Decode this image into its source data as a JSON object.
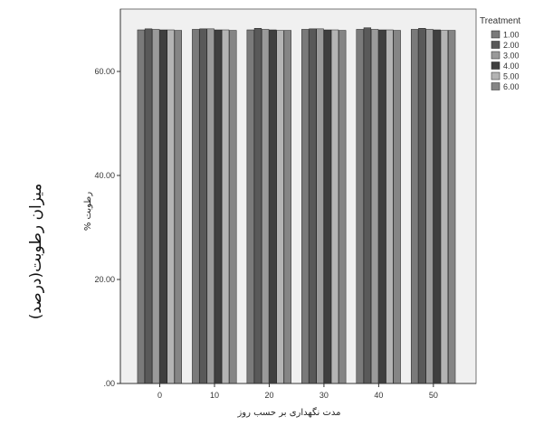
{
  "outer_ylabel": "میزان رطوبت(درصد)",
  "chart_data": {
    "type": "bar",
    "xlabel": "مدت نگهداری بر حسب روز",
    "ylabel": "% رطوبت",
    "categories": [
      "0",
      "10",
      "20",
      "30",
      "40",
      "50"
    ],
    "ylim": [
      0,
      72
    ],
    "y_ticks": [
      ".00",
      "20.00",
      "40.00",
      "60.00"
    ],
    "y_tick_values": [
      0,
      20,
      40,
      60
    ],
    "grid": false,
    "legend": {
      "title": "Treatment",
      "position": "right"
    },
    "series": [
      {
        "name": "1.00",
        "color": "#7a7a7a",
        "values": [
          68.0,
          68.1,
          68.0,
          68.1,
          68.1,
          68.1
        ]
      },
      {
        "name": "2.00",
        "color": "#595959",
        "values": [
          68.2,
          68.2,
          68.3,
          68.2,
          68.4,
          68.3
        ]
      },
      {
        "name": "3.00",
        "color": "#9a9a9a",
        "values": [
          68.1,
          68.2,
          68.1,
          68.2,
          68.1,
          68.1
        ]
      },
      {
        "name": "4.00",
        "color": "#3f3f3f",
        "values": [
          68.0,
          68.0,
          68.0,
          68.0,
          68.0,
          68.0
        ]
      },
      {
        "name": "5.00",
        "color": "#b4b4b4",
        "values": [
          68.0,
          68.0,
          67.9,
          68.0,
          68.0,
          67.9
        ]
      },
      {
        "name": "6.00",
        "color": "#858585",
        "values": [
          67.9,
          67.9,
          67.9,
          67.9,
          67.9,
          67.9
        ]
      }
    ]
  }
}
